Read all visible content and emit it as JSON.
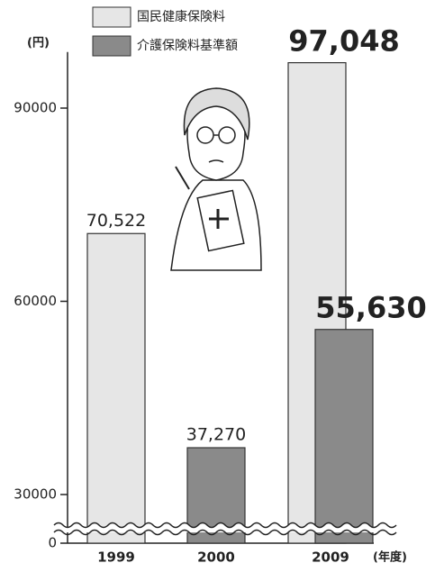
{
  "chart_data": {
    "type": "bar",
    "y_unit": "(円)",
    "x_unit": "(年度)",
    "categories": [
      "1999",
      "2000",
      "2009"
    ],
    "series": [
      {
        "name": "国民健康保険料",
        "color": "#e6e6e6",
        "values": [
          70522,
          null,
          97048
        ],
        "value_labels": [
          "70,522",
          null,
          "97,048"
        ]
      },
      {
        "name": "介護保険料基準額",
        "color": "#8a8a8a",
        "values": [
          null,
          37270,
          55630
        ],
        "value_labels": [
          null,
          "37,270",
          "55,630"
        ]
      }
    ],
    "ylim": [
      0,
      98700
    ],
    "yticks": [
      0,
      30000,
      60000,
      90000
    ],
    "axis_break": true
  }
}
